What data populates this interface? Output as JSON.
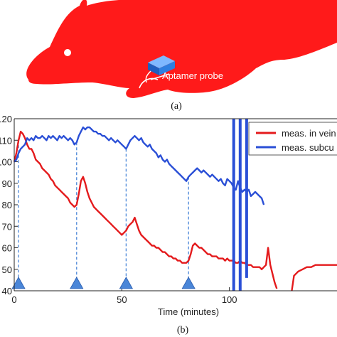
{
  "figure": {
    "caption_a": "(a)",
    "caption_b": "(b)",
    "probe_label": "Aptamer probe"
  },
  "colors": {
    "mouse": "#ff1a1a",
    "series_vein": "#e41a1c",
    "series_subcut": "#2a4fd6",
    "marker": "#4a86d8",
    "probe_box": "#2f7fe0"
  },
  "chart_data": {
    "type": "line",
    "xlabel": "Time (minutes)",
    "ylabel": "",
    "xlim": [
      0,
      150
    ],
    "ylim": [
      40,
      120
    ],
    "xticks": [
      "0",
      "50",
      "100"
    ],
    "yticks": [
      "40",
      "50",
      "60",
      "70",
      "80",
      "90",
      "100",
      "110",
      "120"
    ],
    "grid": false,
    "legend_position": "top-right",
    "legend": [
      "meas. in vein",
      "meas. subcu"
    ],
    "injection_times": [
      2,
      29,
      52,
      81
    ],
    "series": [
      {
        "name": "meas. in vein",
        "color": "#e41a1c",
        "segments": [
          [
            [
              0,
              100
            ],
            [
              1,
              104
            ],
            [
              2,
              110
            ],
            [
              3,
              114
            ],
            [
              4,
              113
            ],
            [
              5,
              111
            ],
            [
              6,
              108
            ],
            [
              7,
              106
            ],
            [
              8,
              106
            ],
            [
              9,
              104
            ],
            [
              10,
              101
            ],
            [
              11,
              100
            ],
            [
              12,
              99
            ],
            [
              13,
              97
            ],
            [
              14,
              96
            ],
            [
              15,
              95
            ],
            [
              16,
              94
            ],
            [
              17,
              92
            ],
            [
              18,
              91
            ],
            [
              19,
              89
            ],
            [
              20,
              88
            ],
            [
              21,
              87
            ],
            [
              22,
              86
            ],
            [
              23,
              85
            ],
            [
              24,
              84
            ],
            [
              25,
              83
            ],
            [
              26,
              81
            ],
            [
              27,
              80
            ],
            [
              28,
              79
            ],
            [
              29,
              80
            ],
            [
              30,
              85
            ],
            [
              31,
              91
            ],
            [
              32,
              93
            ],
            [
              33,
              90
            ],
            [
              34,
              86
            ],
            [
              35,
              83
            ],
            [
              36,
              81
            ],
            [
              37,
              79
            ],
            [
              38,
              78
            ],
            [
              39,
              77
            ],
            [
              40,
              76
            ],
            [
              41,
              75
            ],
            [
              42,
              74
            ],
            [
              43,
              73
            ],
            [
              44,
              72
            ],
            [
              45,
              71
            ],
            [
              46,
              70
            ],
            [
              47,
              69
            ],
            [
              48,
              68
            ],
            [
              49,
              67
            ],
            [
              50,
              66
            ],
            [
              51,
              67
            ],
            [
              52,
              68
            ],
            [
              53,
              70
            ],
            [
              54,
              71
            ],
            [
              55,
              72
            ],
            [
              56,
              74
            ],
            [
              57,
              71
            ],
            [
              58,
              68
            ],
            [
              59,
              66
            ],
            [
              60,
              65
            ],
            [
              61,
              64
            ],
            [
              62,
              63
            ],
            [
              63,
              62
            ],
            [
              64,
              61
            ],
            [
              65,
              61
            ],
            [
              66,
              60
            ],
            [
              67,
              60
            ],
            [
              68,
              59
            ],
            [
              69,
              58
            ],
            [
              70,
              58
            ],
            [
              71,
              57
            ],
            [
              72,
              56
            ],
            [
              73,
              56
            ],
            [
              74,
              55
            ],
            [
              75,
              55
            ],
            [
              76,
              54
            ],
            [
              77,
              54
            ],
            [
              78,
              53
            ],
            [
              79,
              53
            ],
            [
              80,
              53
            ],
            [
              81,
              54
            ],
            [
              82,
              57
            ],
            [
              83,
              61
            ],
            [
              84,
              62
            ],
            [
              85,
              61
            ],
            [
              86,
              60
            ],
            [
              87,
              60
            ],
            [
              88,
              59
            ],
            [
              89,
              58
            ],
            [
              90,
              57
            ],
            [
              91,
              57
            ],
            [
              92,
              56
            ],
            [
              93,
              56
            ],
            [
              94,
              56
            ],
            [
              95,
              55
            ],
            [
              96,
              55
            ],
            [
              97,
              55
            ],
            [
              98,
              54
            ],
            [
              99,
              55
            ],
            [
              100,
              54
            ],
            [
              101,
              54
            ],
            [
              102,
              54
            ],
            [
              103,
              53
            ],
            [
              104,
              53
            ],
            [
              105,
              54
            ],
            [
              106,
              53
            ],
            [
              107,
              53
            ],
            [
              108,
              52
            ],
            [
              109,
              52
            ],
            [
              110,
              52
            ],
            [
              111,
              51
            ],
            [
              112,
              51
            ],
            [
              113,
              51
            ],
            [
              114,
              51
            ],
            [
              115,
              50
            ],
            [
              116,
              51
            ],
            [
              117,
              52
            ],
            [
              118,
              60
            ],
            [
              119,
              52
            ],
            [
              120,
              48
            ],
            [
              121,
              44
            ],
            [
              122,
              41
            ]
          ],
          [
            [
              129,
              40
            ],
            [
              130,
              47
            ],
            [
              131,
              48
            ],
            [
              132,
              49
            ],
            [
              134,
              50
            ],
            [
              136,
              51
            ],
            [
              138,
              51
            ],
            [
              140,
              52
            ],
            [
              142,
              52
            ],
            [
              144,
              52
            ],
            [
              146,
              52
            ],
            [
              148,
              52
            ],
            [
              150,
              52
            ]
          ]
        ]
      },
      {
        "name": "meas. subcu",
        "color": "#2a4fd6",
        "segments": [
          [
            [
              0,
              100
            ],
            [
              1,
              101
            ],
            [
              2,
              104
            ],
            [
              3,
              106
            ],
            [
              4,
              107
            ],
            [
              5,
              108
            ],
            [
              6,
              111
            ],
            [
              7,
              110
            ],
            [
              8,
              111
            ],
            [
              9,
              110
            ],
            [
              10,
              112
            ],
            [
              11,
              111
            ],
            [
              12,
              111
            ],
            [
              13,
              112
            ],
            [
              14,
              111
            ],
            [
              15,
              110
            ],
            [
              16,
              112
            ],
            [
              17,
              111
            ],
            [
              18,
              112
            ],
            [
              19,
              111
            ],
            [
              20,
              110
            ],
            [
              21,
              112
            ],
            [
              22,
              111
            ],
            [
              23,
              112
            ],
            [
              24,
              111
            ],
            [
              25,
              110
            ],
            [
              26,
              111
            ],
            [
              27,
              110
            ],
            [
              28,
              108
            ],
            [
              29,
              109
            ],
            [
              30,
              112
            ],
            [
              31,
              114
            ],
            [
              32,
              116
            ],
            [
              33,
              115
            ],
            [
              34,
              116
            ],
            [
              35,
              116
            ],
            [
              36,
              115
            ],
            [
              37,
              114
            ],
            [
              38,
              114
            ],
            [
              39,
              113
            ],
            [
              40,
              113
            ],
            [
              41,
              112
            ],
            [
              42,
              112
            ],
            [
              43,
              111
            ],
            [
              44,
              110
            ],
            [
              45,
              111
            ],
            [
              46,
              110
            ],
            [
              47,
              109
            ],
            [
              48,
              110
            ],
            [
              49,
              109
            ],
            [
              50,
              108
            ],
            [
              51,
              107
            ],
            [
              52,
              106
            ],
            [
              53,
              108
            ],
            [
              54,
              110
            ],
            [
              55,
              111
            ],
            [
              56,
              112
            ],
            [
              57,
              111
            ],
            [
              58,
              110
            ],
            [
              59,
              111
            ],
            [
              60,
              109
            ],
            [
              61,
              108
            ],
            [
              62,
              107
            ],
            [
              63,
              108
            ],
            [
              64,
              106
            ],
            [
              65,
              105
            ],
            [
              66,
              104
            ],
            [
              67,
              102
            ],
            [
              68,
              103
            ],
            [
              69,
              101
            ],
            [
              70,
              100
            ],
            [
              71,
              101
            ],
            [
              72,
              99
            ],
            [
              73,
              98
            ],
            [
              74,
              97
            ],
            [
              75,
              96
            ],
            [
              76,
              95
            ],
            [
              77,
              94
            ],
            [
              78,
              93
            ],
            [
              79,
              92
            ],
            [
              80,
              91
            ],
            [
              81,
              93
            ],
            [
              82,
              94
            ],
            [
              83,
              95
            ],
            [
              84,
              96
            ],
            [
              85,
              97
            ],
            [
              86,
              96
            ],
            [
              87,
              95
            ],
            [
              88,
              96
            ],
            [
              89,
              95
            ],
            [
              90,
              94
            ],
            [
              91,
              93
            ],
            [
              92,
              94
            ],
            [
              93,
              93
            ],
            [
              94,
              92
            ],
            [
              95,
              91
            ],
            [
              96,
              92
            ],
            [
              97,
              90
            ],
            [
              98,
              89
            ],
            [
              99,
              92
            ],
            [
              100,
              91
            ],
            [
              101,
              90
            ],
            [
              102,
              88
            ],
            [
              103,
              87
            ],
            [
              104,
              91
            ],
            [
              105,
              88
            ],
            [
              106,
              86
            ],
            [
              107,
              87
            ],
            [
              108,
              86
            ],
            [
              109,
              87
            ],
            [
              110,
              84
            ],
            [
              111,
              85
            ],
            [
              112,
              86
            ],
            [
              113,
              85
            ],
            [
              114,
              84
            ],
            [
              115,
              83
            ],
            [
              116,
              80
            ]
          ]
        ]
      }
    ],
    "spikes": [
      {
        "series": "meas. subcu",
        "x": 102,
        "y_from": 40,
        "y_to": 120
      },
      {
        "series": "meas. subcu",
        "x": 105,
        "y_from": 40,
        "y_to": 120
      },
      {
        "series": "meas. subcu",
        "x": 108,
        "y_from": 46,
        "y_to": 120
      }
    ]
  }
}
